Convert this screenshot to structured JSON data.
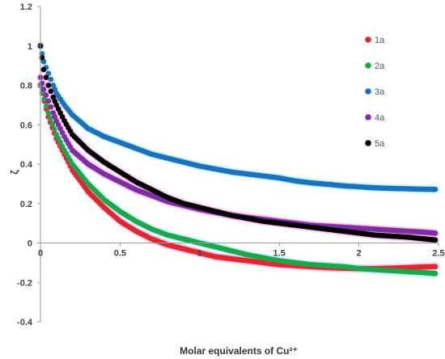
{
  "chart_data": {
    "type": "scatter",
    "title": "",
    "xlabel": "Molar equivalents of Cu²⁺",
    "ylabel": "ζ",
    "xlim": [
      0,
      2.5
    ],
    "ylim": [
      -0.4,
      1.2
    ],
    "x_ticks": [
      "0",
      "0.5",
      "1",
      "1.5",
      "2",
      "2.5"
    ],
    "y_ticks": [
      "1.2",
      "1",
      "0.8",
      "0.6",
      "0.4",
      "0.2",
      "0",
      "-0.2",
      "-0.4"
    ],
    "grid": false,
    "legend_position": "right",
    "series": [
      {
        "name": "1a",
        "color": "#e0282a",
        "halo": "#ff88ee",
        "x": [
          0.0,
          0.05,
          0.1,
          0.15,
          0.2,
          0.3,
          0.4,
          0.5,
          0.6,
          0.7,
          0.8,
          0.9,
          1.0,
          1.1,
          1.2,
          1.3,
          1.4,
          1.5,
          1.6,
          1.7,
          1.8,
          1.9,
          2.0,
          2.1,
          2.2,
          2.3,
          2.4,
          2.48
        ],
        "y": [
          0.8,
          0.64,
          0.53,
          0.45,
          0.37,
          0.26,
          0.18,
          0.11,
          0.06,
          0.02,
          -0.01,
          -0.03,
          -0.05,
          -0.07,
          -0.08,
          -0.09,
          -0.1,
          -0.11,
          -0.115,
          -0.12,
          -0.125,
          -0.128,
          -0.13,
          -0.13,
          -0.128,
          -0.125,
          -0.122,
          -0.12
        ]
      },
      {
        "name": "2a",
        "color": "#1fa54a",
        "halo": "#7ff5f0",
        "x": [
          0.0,
          0.05,
          0.1,
          0.15,
          0.2,
          0.3,
          0.4,
          0.5,
          0.6,
          0.7,
          0.8,
          0.9,
          1.0,
          1.1,
          1.2,
          1.3,
          1.4,
          1.5,
          1.6,
          1.7,
          1.8,
          1.9,
          2.0,
          2.1,
          2.2,
          2.3,
          2.4,
          2.48
        ],
        "y": [
          0.8,
          0.66,
          0.55,
          0.47,
          0.4,
          0.3,
          0.22,
          0.16,
          0.11,
          0.07,
          0.04,
          0.02,
          0.0,
          -0.02,
          -0.04,
          -0.06,
          -0.075,
          -0.09,
          -0.1,
          -0.11,
          -0.115,
          -0.12,
          -0.13,
          -0.135,
          -0.14,
          -0.145,
          -0.15,
          -0.155
        ]
      },
      {
        "name": "3a",
        "color": "#1f6fbf",
        "halo": "#7ff5f0",
        "x": [
          0.0,
          0.02,
          0.05,
          0.08,
          0.1,
          0.15,
          0.2,
          0.3,
          0.4,
          0.5,
          0.6,
          0.7,
          0.8,
          0.9,
          1.0,
          1.1,
          1.2,
          1.3,
          1.4,
          1.5,
          1.6,
          1.7,
          1.8,
          1.9,
          2.0,
          2.1,
          2.2,
          2.3,
          2.4,
          2.48
        ],
        "y": [
          1.0,
          0.92,
          0.86,
          0.8,
          0.76,
          0.7,
          0.65,
          0.58,
          0.54,
          0.51,
          0.48,
          0.45,
          0.43,
          0.41,
          0.39,
          0.375,
          0.36,
          0.35,
          0.34,
          0.33,
          0.315,
          0.305,
          0.298,
          0.29,
          0.285,
          0.28,
          0.277,
          0.275,
          0.273,
          0.272
        ]
      },
      {
        "name": "4a",
        "color": "#7b2fa0",
        "halo": "#ff88ee",
        "x": [
          0.0,
          0.02,
          0.05,
          0.08,
          0.1,
          0.15,
          0.2,
          0.3,
          0.4,
          0.5,
          0.6,
          0.7,
          0.8,
          0.9,
          1.0,
          1.1,
          1.2,
          1.3,
          1.4,
          1.5,
          1.6,
          1.7,
          1.8,
          1.9,
          2.0,
          2.1,
          2.2,
          2.3,
          2.4,
          2.48
        ],
        "y": [
          0.84,
          0.78,
          0.72,
          0.66,
          0.62,
          0.54,
          0.47,
          0.4,
          0.35,
          0.31,
          0.27,
          0.24,
          0.21,
          0.19,
          0.17,
          0.155,
          0.14,
          0.13,
          0.12,
          0.11,
          0.1,
          0.09,
          0.085,
          0.08,
          0.075,
          0.07,
          0.065,
          0.06,
          0.055,
          0.05
        ]
      },
      {
        "name": "5a",
        "color": "#000000",
        "halo": "#ff88ee",
        "x": [
          0.0,
          0.02,
          0.05,
          0.08,
          0.1,
          0.15,
          0.2,
          0.3,
          0.4,
          0.5,
          0.6,
          0.7,
          0.8,
          0.9,
          1.0,
          1.1,
          1.2,
          1.3,
          1.4,
          1.5,
          1.6,
          1.7,
          1.8,
          1.9,
          2.0,
          2.1,
          2.2,
          2.3,
          2.4,
          2.48
        ],
        "y": [
          1.0,
          0.88,
          0.8,
          0.74,
          0.7,
          0.62,
          0.55,
          0.47,
          0.41,
          0.36,
          0.31,
          0.27,
          0.23,
          0.2,
          0.18,
          0.16,
          0.14,
          0.125,
          0.11,
          0.1,
          0.09,
          0.08,
          0.07,
          0.06,
          0.05,
          0.04,
          0.035,
          0.03,
          0.022,
          0.015
        ]
      }
    ]
  }
}
